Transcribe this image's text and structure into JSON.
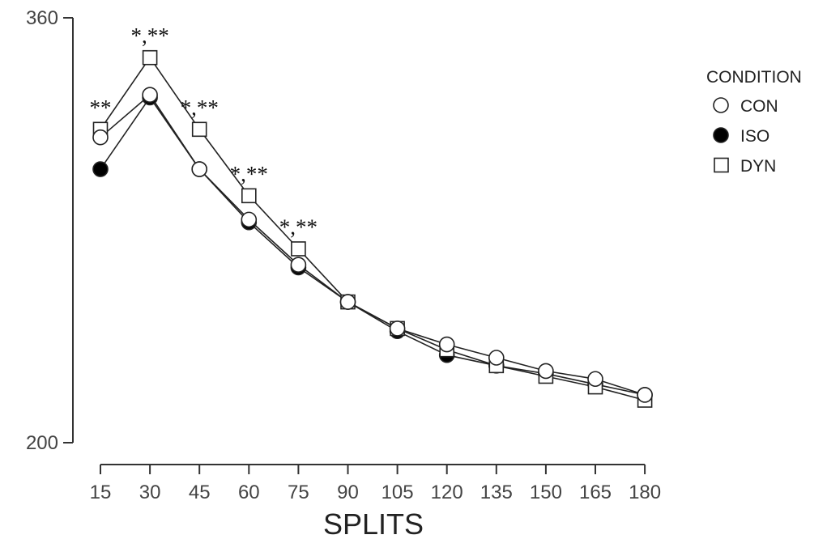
{
  "chart_data": {
    "type": "line",
    "title": "",
    "xlabel": "SPLITS",
    "ylabel": "",
    "ylim": [
      200,
      360
    ],
    "yticks": [
      200,
      360
    ],
    "grid": false,
    "x": [
      15,
      30,
      45,
      60,
      75,
      90,
      105,
      120,
      135,
      150,
      165,
      180
    ],
    "legend": {
      "title": "CONDITION",
      "position": "right"
    },
    "series": [
      {
        "name": "CON",
        "marker": "open-circle",
        "color": "#ffffff",
        "values": [
          315,
          331,
          303,
          284,
          267,
          253,
          243,
          237,
          232,
          227,
          224,
          218
        ]
      },
      {
        "name": "ISO",
        "marker": "filled-circle",
        "color": "#000000",
        "values": [
          303,
          330,
          303,
          283,
          266,
          253,
          242,
          233,
          229,
          226,
          222,
          218
        ]
      },
      {
        "name": "DYN",
        "marker": "open-square",
        "color": "#ffffff",
        "values": [
          318,
          345,
          318,
          293,
          273,
          253,
          243,
          235,
          229,
          225,
          221,
          216
        ]
      }
    ],
    "annotations": [
      {
        "x": 15,
        "y": 318,
        "text": "**"
      },
      {
        "x": 30,
        "y": 345,
        "text": "*,**"
      },
      {
        "x": 45,
        "y": 318,
        "text": "*,**"
      },
      {
        "x": 60,
        "y": 293,
        "text": "*,**"
      },
      {
        "x": 75,
        "y": 273,
        "text": "*,**"
      }
    ]
  }
}
